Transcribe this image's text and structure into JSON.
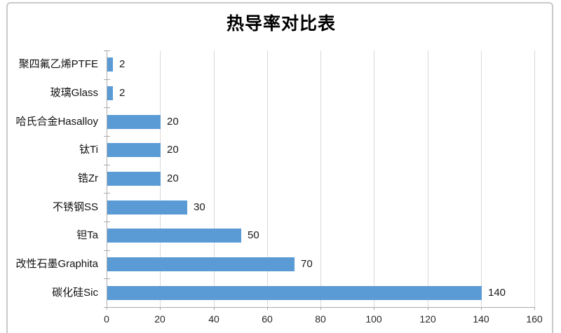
{
  "chart_data": {
    "type": "bar",
    "orientation": "horizontal",
    "title": "热导率对比表",
    "categories": [
      "聚四氟乙烯PTFE",
      "玻璃Glass",
      "哈氏合金Hasalloy",
      "钛Ti",
      "锆Zr",
      "不锈钢SS",
      "钽Ta",
      "改性石墨Graphita",
      "碳化硅Sic"
    ],
    "values": [
      2,
      2,
      20,
      20,
      20,
      30,
      50,
      70,
      140
    ],
    "value_labels": [
      "2",
      "2",
      "20",
      "20",
      "20",
      "30",
      "50",
      "70",
      "140"
    ],
    "x_ticks": [
      "0",
      "20",
      "40",
      "60",
      "80",
      "100",
      "120",
      "140",
      "160"
    ],
    "xlim": [
      0,
      160
    ],
    "xlabel": "",
    "ylabel": "",
    "grid": "vertical",
    "legend": "none",
    "colors": {
      "bar": "#5B9BD5",
      "gridline": "#D9D9D9",
      "axis": "#ABABAB",
      "text": "#1a1a1a",
      "border": "#C9C9C9",
      "background": "#FFFFFF"
    }
  }
}
